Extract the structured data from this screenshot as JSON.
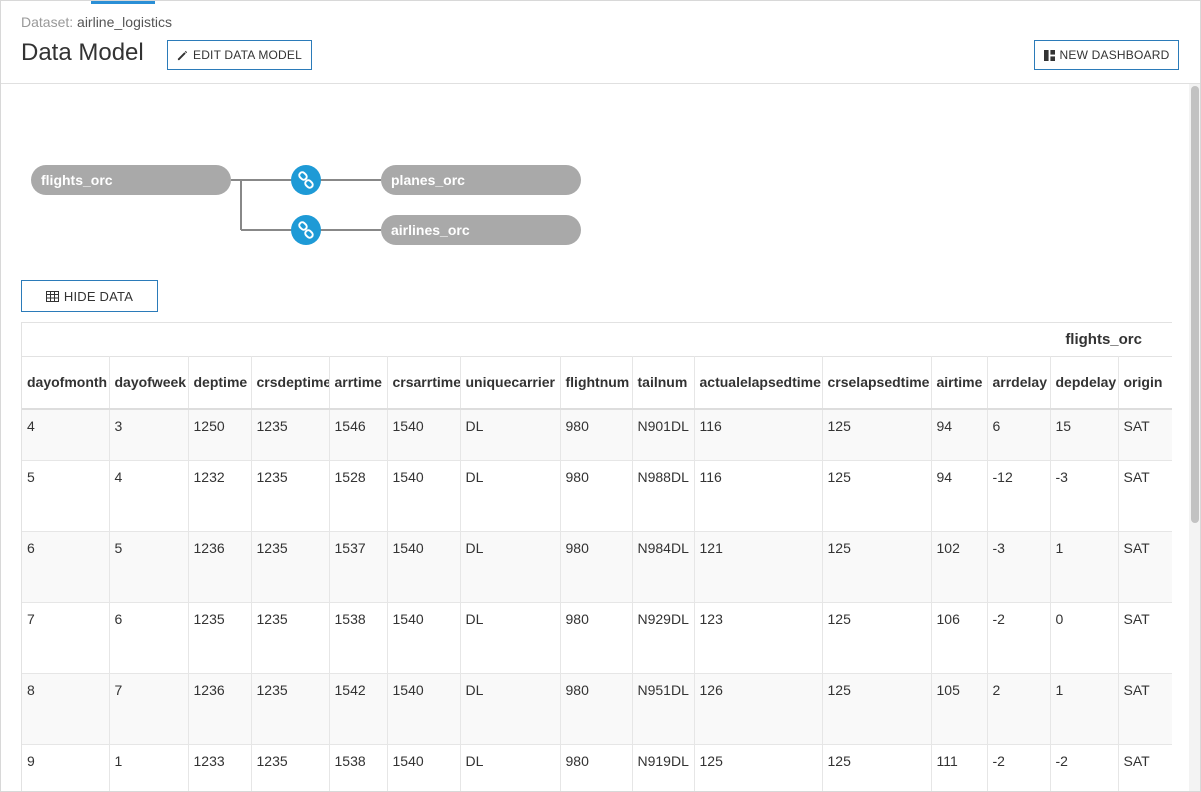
{
  "header": {
    "dataset_label": "Dataset:",
    "dataset_name": "airline_logistics",
    "title": "Data Model",
    "edit_button_label": "EDIT DATA MODEL",
    "new_dashboard_label": "NEW DASHBOARD"
  },
  "diagram": {
    "nodes": {
      "flights": "flights_orc",
      "planes": "planes_orc",
      "airlines": "airlines_orc"
    },
    "colors": {
      "node": "#a9a9a9",
      "join": "#1e9ad6",
      "connector": "#888888"
    }
  },
  "hide_data_label": "HIDE DATA",
  "table": {
    "title": "flights_orc",
    "columns": [
      "dayofmonth",
      "dayofweek",
      "deptime",
      "crsdeptime",
      "arrtime",
      "crsarrtime",
      "uniquecarrier",
      "flightnum",
      "tailnum",
      "actualelapsedtime",
      "crselapsedtime",
      "airtime",
      "arrdelay",
      "depdelay",
      "origin"
    ],
    "rows": [
      [
        "4",
        "3",
        "1250",
        "1235",
        "1546",
        "1540",
        "DL",
        "980",
        "N901DL",
        "116",
        "125",
        "94",
        "6",
        "15",
        "SAT"
      ],
      [
        "5",
        "4",
        "1232",
        "1235",
        "1528",
        "1540",
        "DL",
        "980",
        "N988DL",
        "116",
        "125",
        "94",
        "-12",
        "-3",
        "SAT"
      ],
      [
        "6",
        "5",
        "1236",
        "1235",
        "1537",
        "1540",
        "DL",
        "980",
        "N984DL",
        "121",
        "125",
        "102",
        "-3",
        "1",
        "SAT"
      ],
      [
        "7",
        "6",
        "1235",
        "1235",
        "1538",
        "1540",
        "DL",
        "980",
        "N929DL",
        "123",
        "125",
        "106",
        "-2",
        "0",
        "SAT"
      ],
      [
        "8",
        "7",
        "1236",
        "1235",
        "1542",
        "1540",
        "DL",
        "980",
        "N951DL",
        "126",
        "125",
        "105",
        "2",
        "1",
        "SAT"
      ],
      [
        "9",
        "1",
        "1233",
        "1235",
        "1538",
        "1540",
        "DL",
        "980",
        "N919DL",
        "125",
        "125",
        "111",
        "-2",
        "-2",
        "SAT"
      ]
    ]
  },
  "colors": {
    "accent": "#2a8fd6",
    "button_border": "#2b7bb9"
  }
}
